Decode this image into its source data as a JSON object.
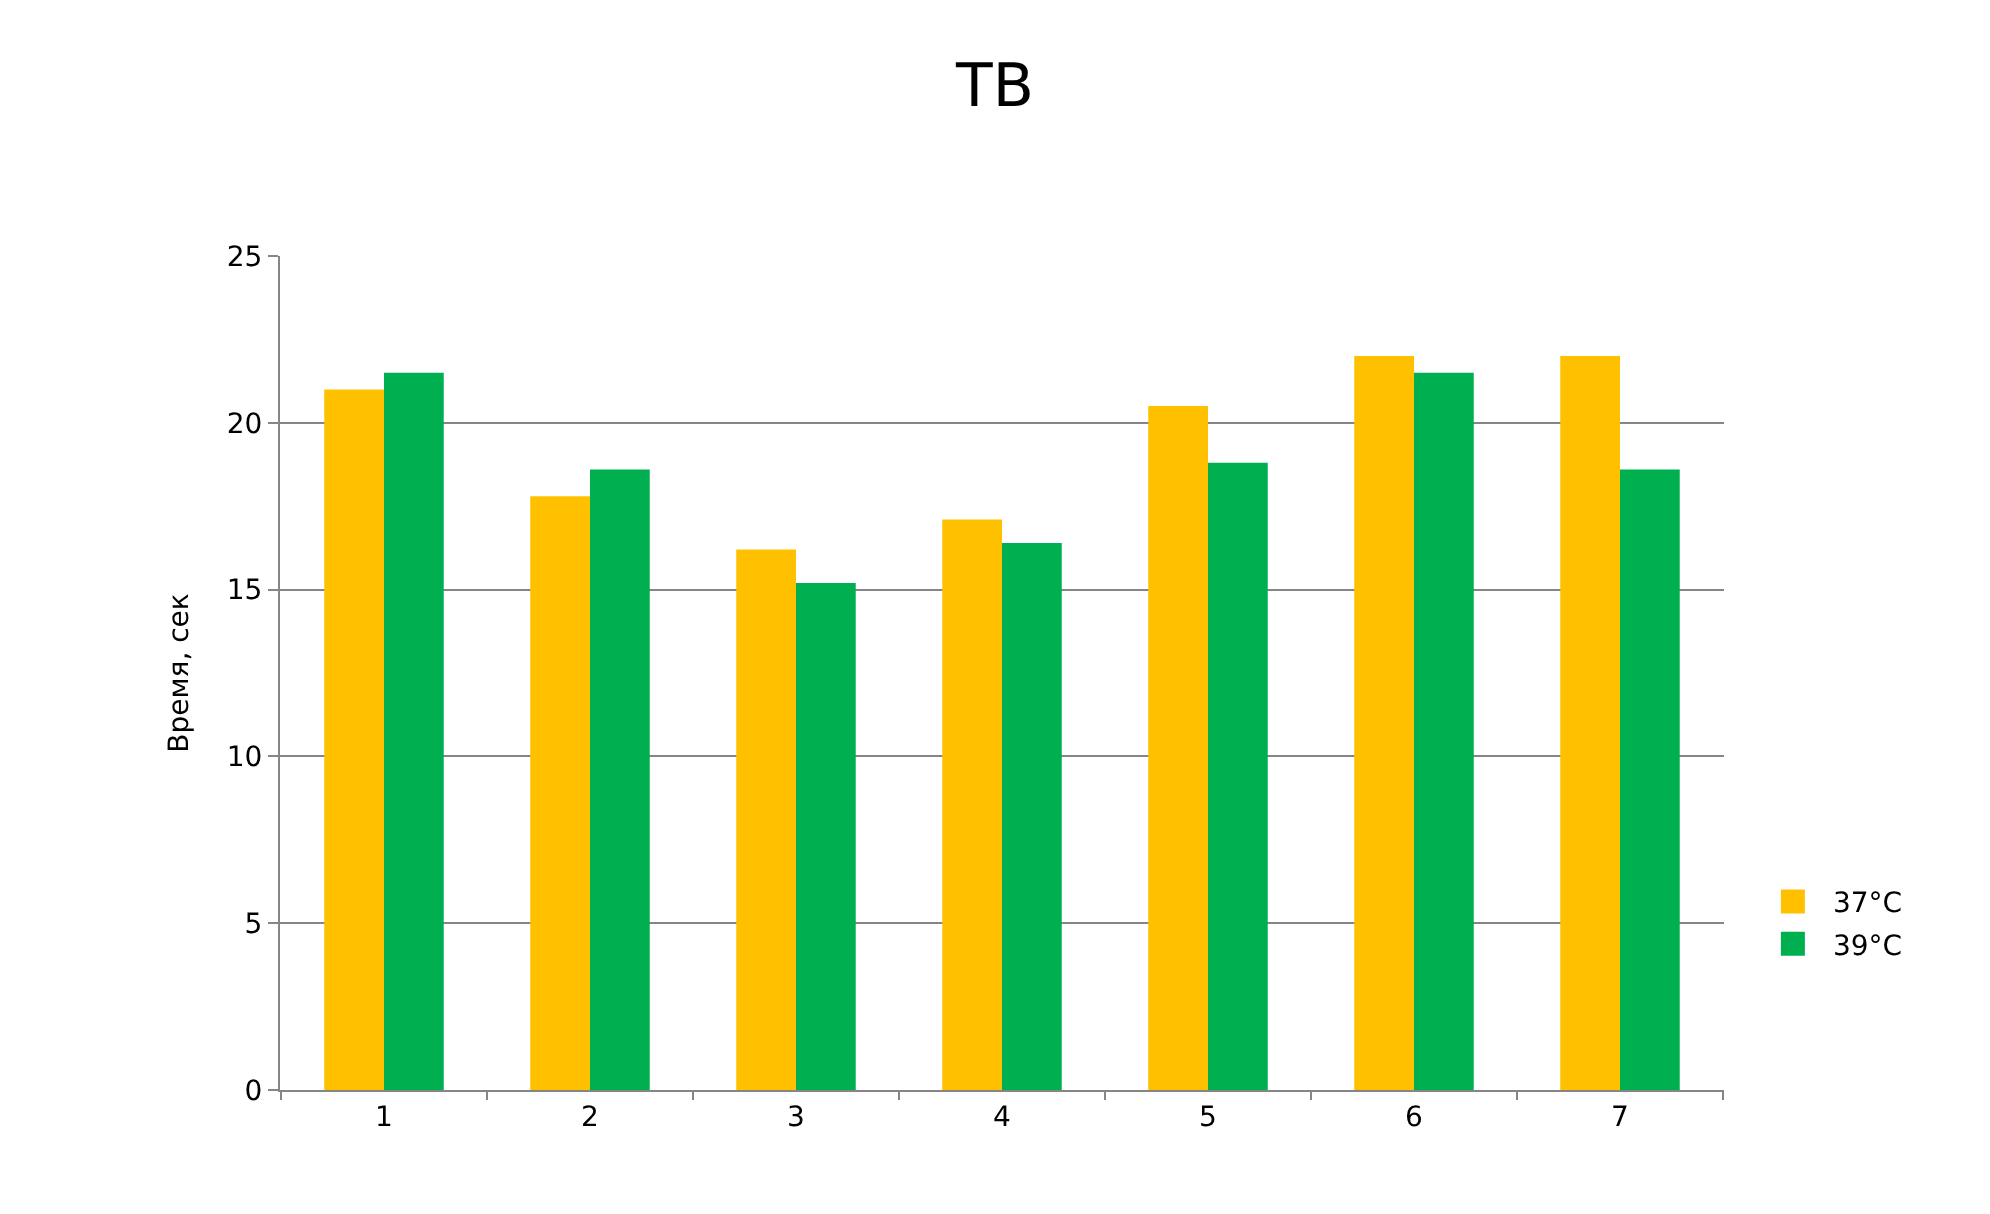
{
  "chart_data": {
    "type": "bar",
    "title": "ТВ",
    "ylabel": "Время, сек",
    "categories": [
      "1",
      "2",
      "3",
      "4",
      "5",
      "6",
      "7"
    ],
    "series": [
      {
        "name": "37°C",
        "color": "#ffc000",
        "values": [
          21,
          17.8,
          16.2,
          17.1,
          20.5,
          22,
          22
        ]
      },
      {
        "name": "39°C",
        "color": "#00b050",
        "values": [
          21.5,
          18.6,
          15.2,
          16.4,
          18.8,
          21.5,
          18.6
        ]
      }
    ],
    "ylim": [
      0,
      25
    ],
    "yticks": [
      0,
      5,
      10,
      15,
      20,
      25
    ],
    "grid": "y",
    "legend": "right"
  }
}
